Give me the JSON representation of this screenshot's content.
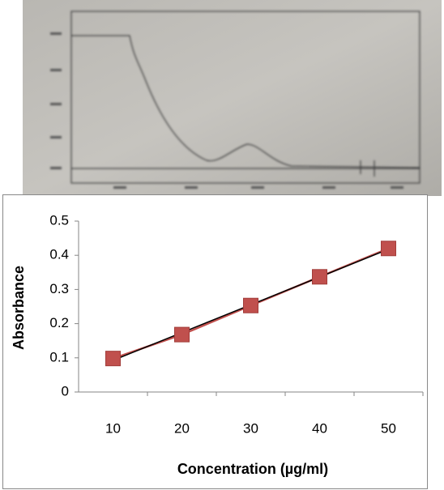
{
  "chart_data": {
    "type": "line",
    "x_label": "Concentration (µg/ml)",
    "y_label": "Absorbance",
    "categories": [
      "10",
      "20",
      "30",
      "40",
      "50"
    ],
    "series": [
      {
        "color": "#c0504d",
        "values": [
          0.098,
          0.168,
          0.253,
          0.337,
          0.42
        ]
      }
    ],
    "marker": "square",
    "trendline": true,
    "trendline_color": "#000000",
    "ylim": [
      0,
      0.5
    ],
    "yticks": [
      0,
      0.1,
      0.2,
      0.3,
      0.4,
      0.5
    ],
    "grid": false
  }
}
